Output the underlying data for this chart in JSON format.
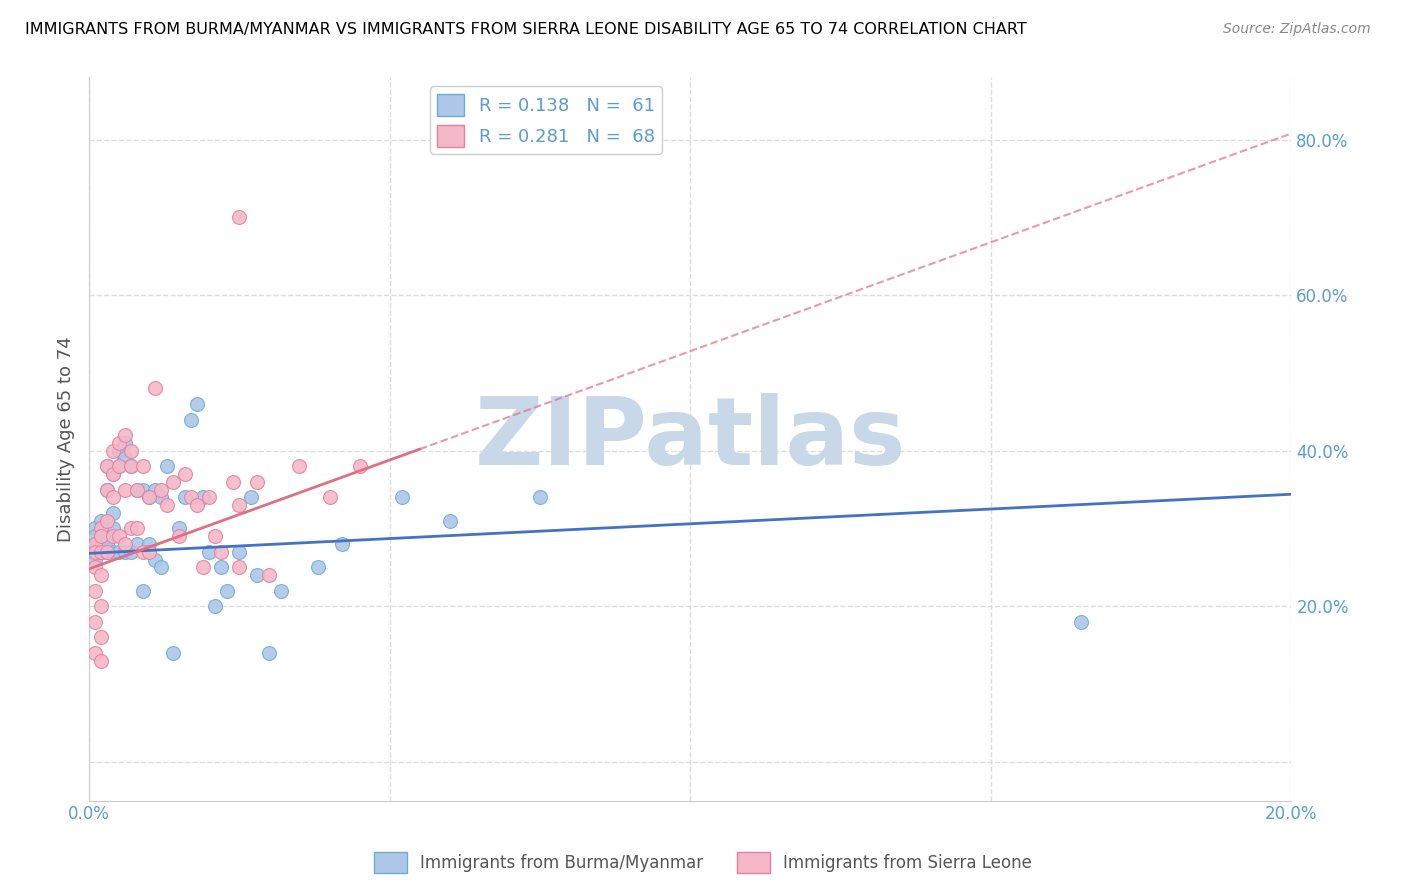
{
  "title": "IMMIGRANTS FROM BURMA/MYANMAR VS IMMIGRANTS FROM SIERRA LEONE DISABILITY AGE 65 TO 74 CORRELATION CHART",
  "source": "Source: ZipAtlas.com",
  "ylabel": "Disability Age 65 to 74",
  "x_min": 0.0,
  "x_max": 0.2,
  "y_min": -0.05,
  "y_max": 0.88,
  "x_ticks": [
    0.0,
    0.05,
    0.1,
    0.15,
    0.2
  ],
  "x_tick_labels": [
    "0.0%",
    "",
    "",
    "",
    "20.0%"
  ],
  "y_ticks": [
    0.0,
    0.2,
    0.4,
    0.6,
    0.8
  ],
  "y_tick_labels": [
    "",
    "20.0%",
    "40.0%",
    "60.0%",
    "80.0%"
  ],
  "series1_color": "#aec6e8",
  "series1_edge": "#6aaed6",
  "series2_color": "#f4b8c8",
  "series2_edge": "#e87fa0",
  "line1_color": "#4472c4",
  "line2_color": "#e07080",
  "watermark": "ZIPatlas",
  "legend_bottom1": "Immigrants from Burma/Myanmar",
  "legend_bottom2": "Immigrants from Sierra Leone",
  "series1_x": [
    0.001,
    0.001,
    0.001,
    0.001,
    0.001,
    0.002,
    0.002,
    0.002,
    0.002,
    0.002,
    0.002,
    0.003,
    0.003,
    0.003,
    0.003,
    0.003,
    0.004,
    0.004,
    0.004,
    0.004,
    0.005,
    0.005,
    0.005,
    0.006,
    0.006,
    0.006,
    0.007,
    0.007,
    0.008,
    0.008,
    0.009,
    0.009,
    0.01,
    0.01,
    0.011,
    0.011,
    0.012,
    0.012,
    0.013,
    0.014,
    0.015,
    0.016,
    0.017,
    0.018,
    0.019,
    0.02,
    0.021,
    0.022,
    0.023,
    0.025,
    0.027,
    0.028,
    0.03,
    0.032,
    0.038,
    0.042,
    0.052,
    0.06,
    0.075,
    0.165
  ],
  "series1_y": [
    0.28,
    0.3,
    0.27,
    0.29,
    0.26,
    0.31,
    0.29,
    0.28,
    0.27,
    0.3,
    0.27,
    0.35,
    0.38,
    0.27,
    0.29,
    0.28,
    0.37,
    0.3,
    0.27,
    0.32,
    0.4,
    0.38,
    0.27,
    0.41,
    0.39,
    0.27,
    0.38,
    0.27,
    0.35,
    0.28,
    0.35,
    0.22,
    0.34,
    0.28,
    0.35,
    0.26,
    0.34,
    0.25,
    0.38,
    0.14,
    0.3,
    0.34,
    0.44,
    0.46,
    0.34,
    0.27,
    0.2,
    0.25,
    0.22,
    0.27,
    0.34,
    0.24,
    0.14,
    0.22,
    0.25,
    0.28,
    0.34,
    0.31,
    0.34,
    0.18
  ],
  "series2_x": [
    0.001,
    0.001,
    0.001,
    0.001,
    0.001,
    0.001,
    0.002,
    0.002,
    0.002,
    0.002,
    0.002,
    0.002,
    0.002,
    0.003,
    0.003,
    0.003,
    0.003,
    0.004,
    0.004,
    0.004,
    0.004,
    0.005,
    0.005,
    0.005,
    0.006,
    0.006,
    0.006,
    0.007,
    0.007,
    0.007,
    0.008,
    0.008,
    0.009,
    0.009,
    0.01,
    0.01,
    0.011,
    0.012,
    0.013,
    0.014,
    0.015,
    0.016,
    0.017,
    0.018,
    0.019,
    0.02,
    0.021,
    0.022,
    0.024,
    0.025,
    0.025,
    0.028,
    0.03,
    0.035,
    0.04,
    0.045,
    0.025
  ],
  "series2_y": [
    0.28,
    0.25,
    0.22,
    0.18,
    0.14,
    0.27,
    0.3,
    0.27,
    0.24,
    0.2,
    0.16,
    0.13,
    0.29,
    0.38,
    0.35,
    0.31,
    0.27,
    0.4,
    0.37,
    0.34,
    0.29,
    0.41,
    0.38,
    0.29,
    0.42,
    0.35,
    0.28,
    0.4,
    0.38,
    0.3,
    0.35,
    0.3,
    0.38,
    0.27,
    0.34,
    0.27,
    0.48,
    0.35,
    0.33,
    0.36,
    0.29,
    0.37,
    0.34,
    0.33,
    0.25,
    0.34,
    0.29,
    0.27,
    0.36,
    0.33,
    0.25,
    0.36,
    0.24,
    0.38,
    0.34,
    0.38,
    0.7
  ],
  "background_color": "#ffffff",
  "grid_color": "#dddddd",
  "tick_label_color": "#5b9bd5",
  "title_color": "#000000",
  "ylabel_color": "#555555",
  "watermark_color": "#c8d8e8",
  "dot_size": 100,
  "line1_intercept": 0.268,
  "line1_slope": 0.38,
  "line2_intercept": 0.248,
  "line2_slope": 2.8,
  "line2_solid_end": 0.055
}
